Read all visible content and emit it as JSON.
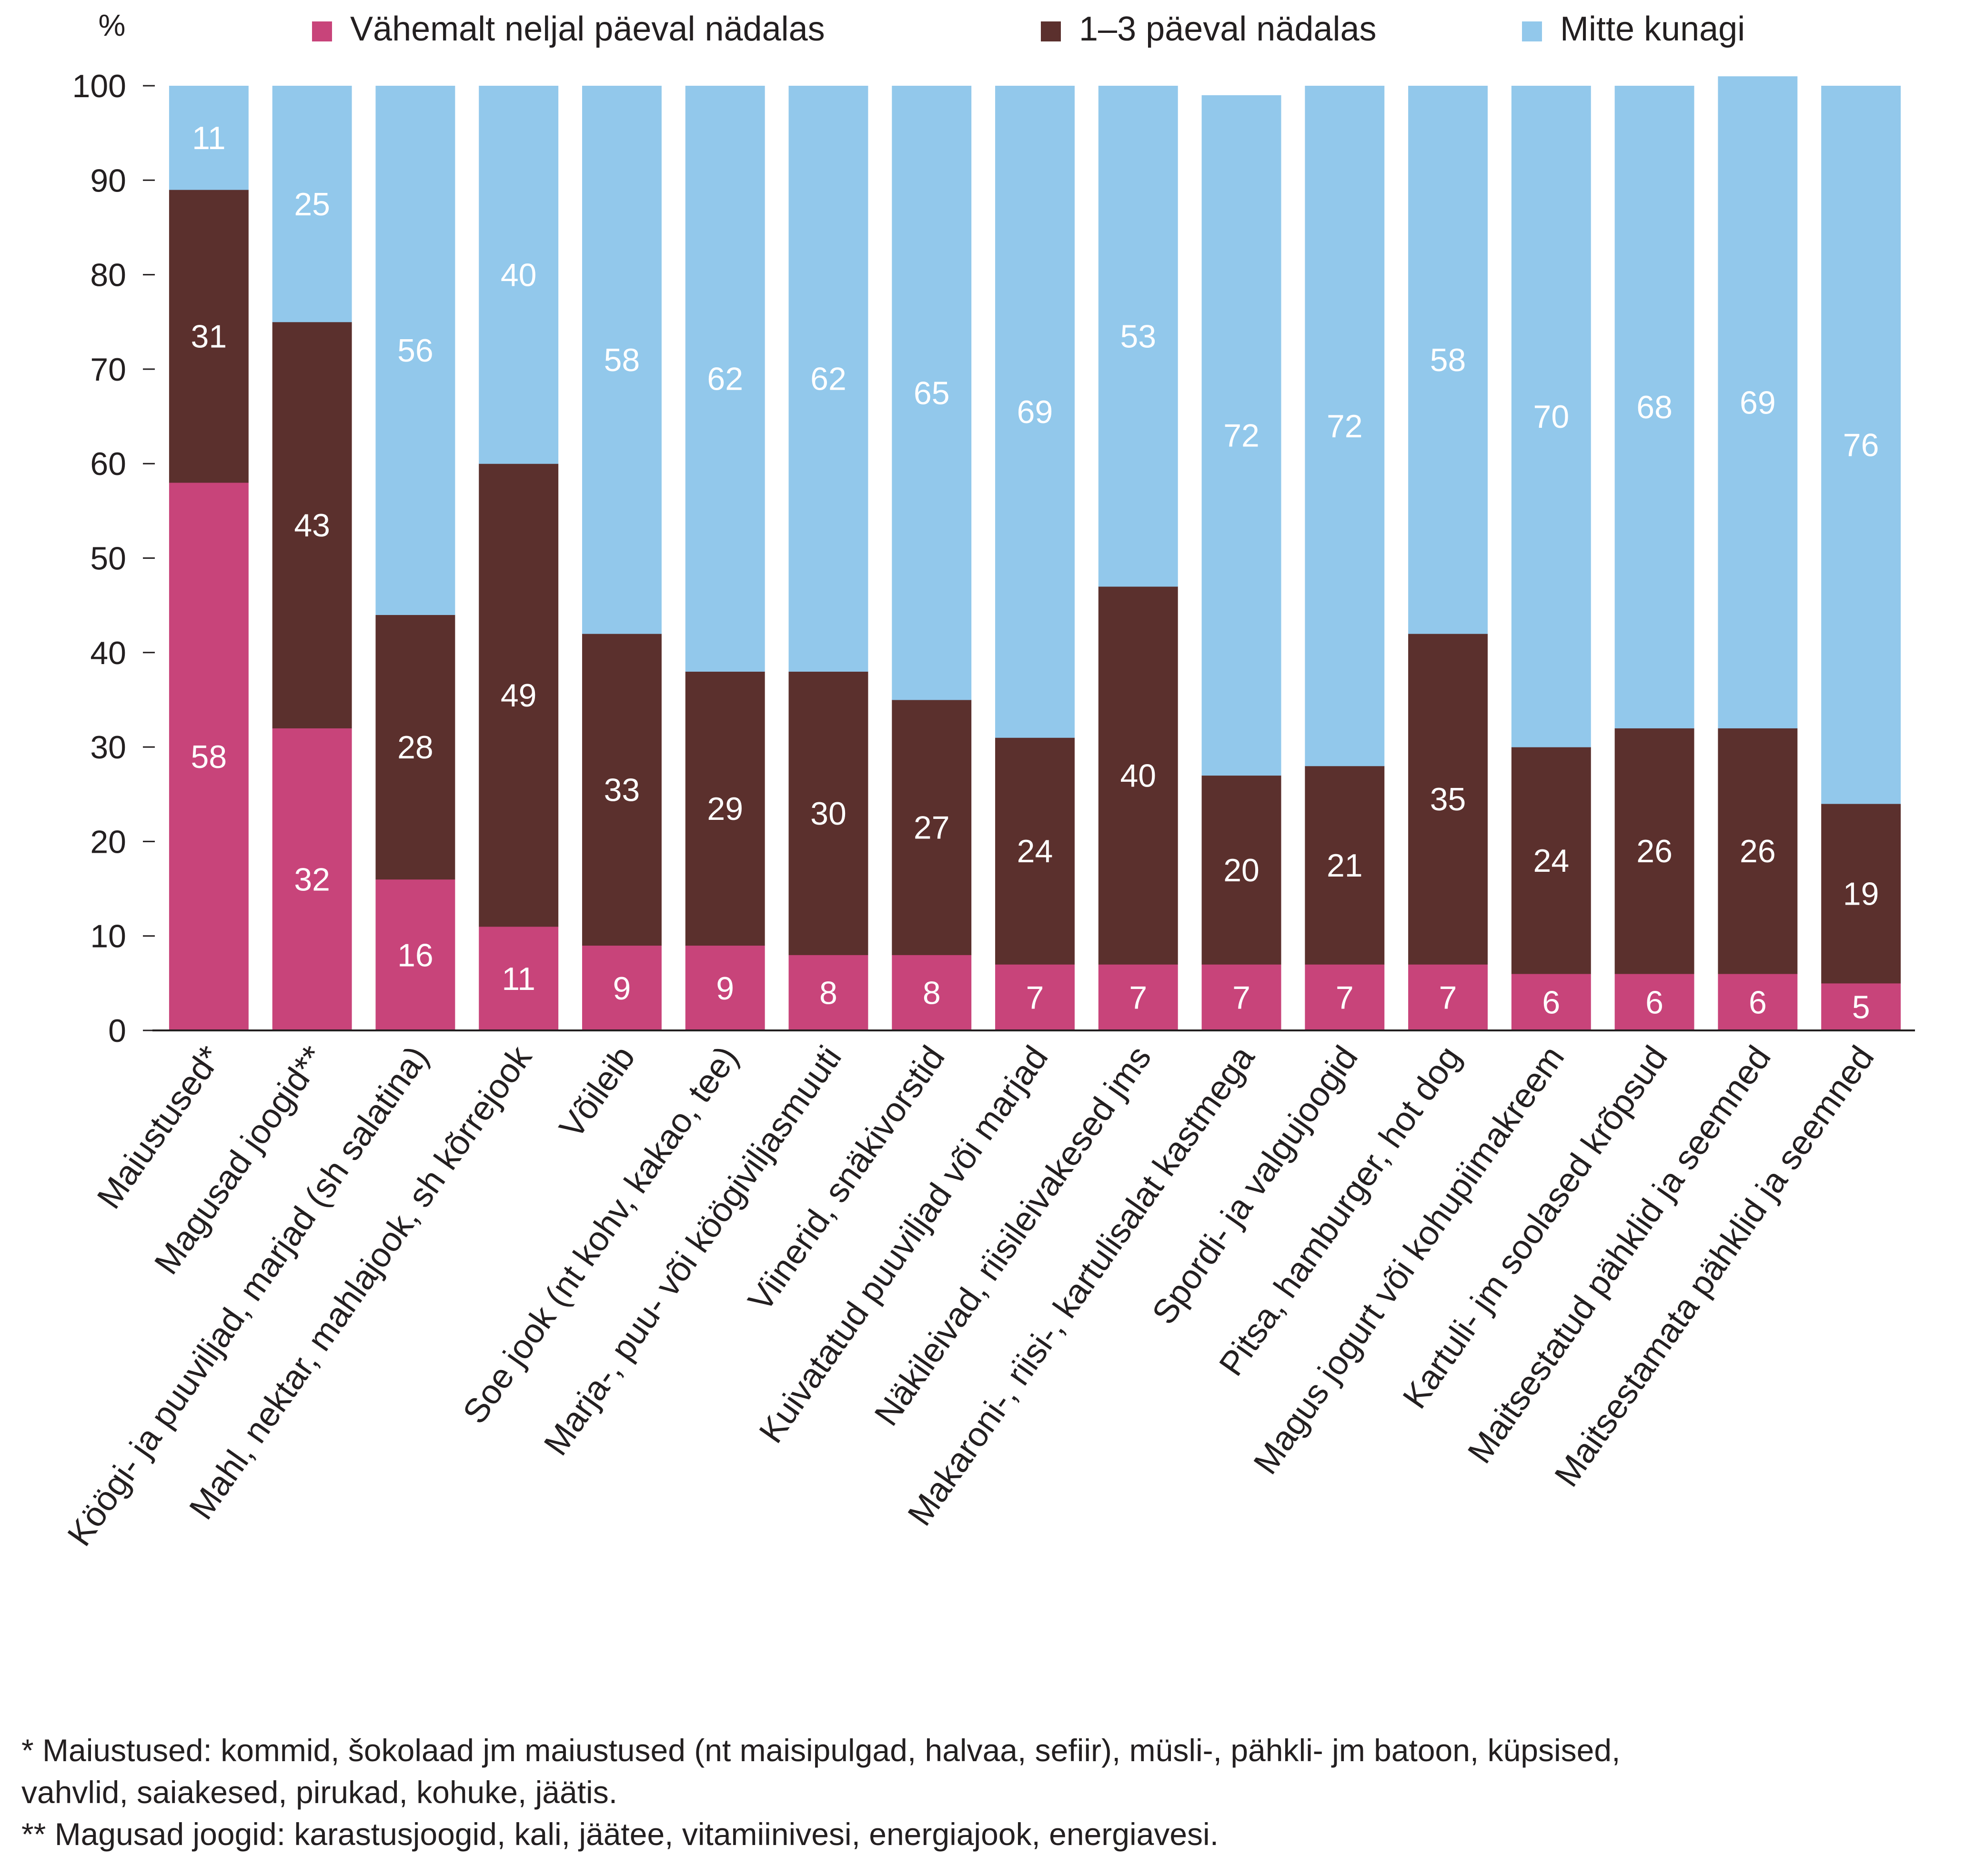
{
  "chart_data": {
    "type": "bar",
    "stacked": true,
    "ylabel": "%",
    "ylim": [
      0,
      100
    ],
    "yticks": [
      "0",
      "10",
      "20",
      "30",
      "40",
      "50",
      "60",
      "70",
      "80",
      "90",
      "100"
    ],
    "grid": false,
    "legend_position": "top",
    "categories": [
      "Maiustused*",
      "Magusad joogid**",
      "Köögi- ja puuviljad, marjad (sh salatina)",
      "Mahl, nektar, mahlajook, sh kõrrejook",
      "Võileib",
      "Soe jook (nt kohv, kakao, tee)",
      "Marja-, puu- või köögiviljasmuuti",
      "Viinerid, snäkivorstid",
      "Kuivatatud puuviljad või marjad",
      "Näkileivad, riisileivakesed jms",
      "Makaroni-, riisi-, kartulisalat kastmega",
      "Spordi- ja valgujoogid",
      "Pitsa, hamburger, hot dog",
      "Magus jogurt või kohupiimakreem",
      "Kartuli- jm soolased krõpsud",
      "Maitsestatud pähklid ja seemned",
      "Maitsestamata pähklid ja seemned"
    ],
    "series": [
      {
        "name": "Vähemalt neljal päeval nädalas",
        "color": "#c8447a",
        "values": [
          58,
          32,
          16,
          11,
          9,
          9,
          8,
          8,
          7,
          7,
          7,
          7,
          7,
          6,
          6,
          6,
          5
        ],
        "labels": [
          "58",
          "32",
          "16",
          "11",
          "9",
          "9",
          "8",
          "8",
          "7",
          "7",
          "7",
          "7",
          "7",
          "6",
          "6",
          "6",
          "5"
        ]
      },
      {
        "name": "1–3 päeval nädalas",
        "color": "#5b302d",
        "values": [
          31,
          43,
          28,
          49,
          33,
          29,
          30,
          27,
          24,
          40,
          20,
          21,
          35,
          24,
          26,
          26,
          19
        ],
        "labels": [
          "31",
          "43",
          "28",
          "49",
          "33",
          "29",
          "30",
          "27",
          "24",
          "40",
          "20",
          "21",
          "35",
          "24",
          "26",
          "26",
          "19"
        ]
      },
      {
        "name": "Mitte kunagi",
        "color": "#92c8eb",
        "values": [
          11,
          25,
          56,
          40,
          58,
          62,
          62,
          65,
          69,
          53,
          72,
          72,
          58,
          70,
          68,
          69,
          76
        ],
        "labels": [
          "11",
          "25",
          "56",
          "40",
          "58",
          "62",
          "62",
          "65",
          "69",
          "53",
          "72",
          "72",
          "58",
          "70",
          "68",
          "69",
          "76"
        ]
      }
    ]
  },
  "footnotes": {
    "line1": "* Maiustused: kommid, šokolaad jm maiustused (nt maisipulgad, halvaa, sefiir), müsli-, pähkli- jm batoon, küpsised,",
    "line2": "vahvlid, saiakesed, pirukad, kohuke, jäätis.",
    "line3": "** Magusad joogid: karastusjoogid, kali, jäätee, vitamiinivesi, energiajook, energiavesi."
  }
}
